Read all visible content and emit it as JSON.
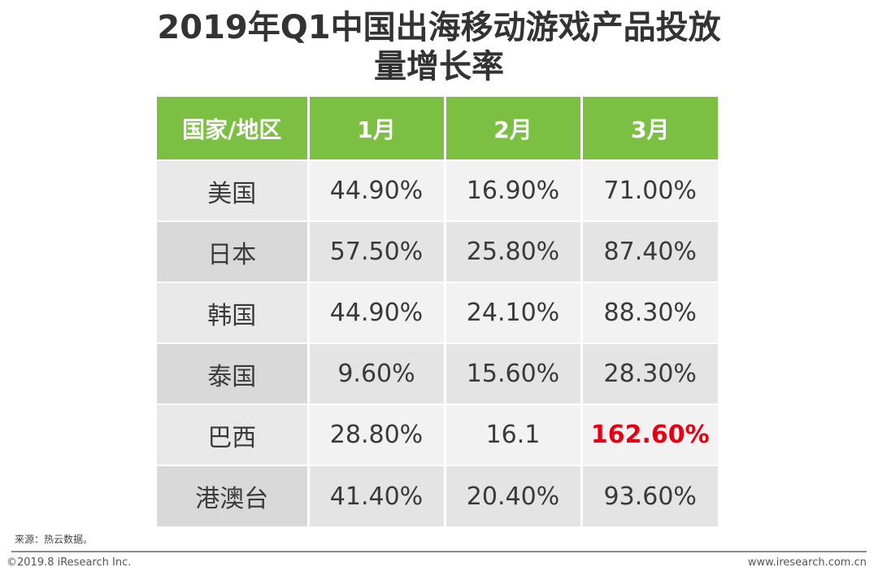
{
  "title": {
    "line1": "2019年Q1中国出海移动游戏产品投放",
    "line2": "量增长率"
  },
  "table": {
    "headers": [
      "国家/地区",
      "1月",
      "2月",
      "3月"
    ],
    "rows": [
      {
        "country": "美国",
        "values": [
          "44.90%",
          "16.90%",
          "71.00%"
        ]
      },
      {
        "country": "日本",
        "values": [
          "57.50%",
          "25.80%",
          "87.40%"
        ]
      },
      {
        "country": "韩国",
        "values": [
          "44.90%",
          "24.10%",
          "88.30%"
        ]
      },
      {
        "country": "泰国",
        "values": [
          "9.60%",
          "15.60%",
          "28.30%"
        ]
      },
      {
        "country": "巴西",
        "values": [
          "28.80%",
          "16.1",
          "162.60%"
        ]
      },
      {
        "country": "港澳台",
        "values": [
          "41.40%",
          "20.40%",
          "93.60%"
        ]
      }
    ],
    "highlight": {
      "row": 4,
      "col": 2,
      "color": "#e60012"
    }
  },
  "chart_data": {
    "type": "table",
    "title": "2019年Q1中国出海移动游戏产品投放量增长率",
    "columns": [
      "国家/地区",
      "1月",
      "2月",
      "3月"
    ],
    "rows": [
      [
        "美国",
        "44.90%",
        "16.90%",
        "71.00%"
      ],
      [
        "日本",
        "57.50%",
        "25.80%",
        "87.40%"
      ],
      [
        "韩国",
        "44.90%",
        "24.10%",
        "88.30%"
      ],
      [
        "泰国",
        "9.60%",
        "15.60%",
        "28.30%"
      ],
      [
        "巴西",
        "28.80%",
        "16.1",
        "162.60%"
      ],
      [
        "港澳台",
        "41.40%",
        "20.40%",
        "93.60%"
      ]
    ]
  },
  "colors": {
    "header_bg": "#7bc043",
    "header_text": "#ffffff",
    "highlight_text": "#e60012"
  },
  "footer": {
    "source": "来源：热云数据。",
    "copyright": "©2019.8 iResearch Inc.",
    "website": "www.iresearch.com.cn"
  }
}
